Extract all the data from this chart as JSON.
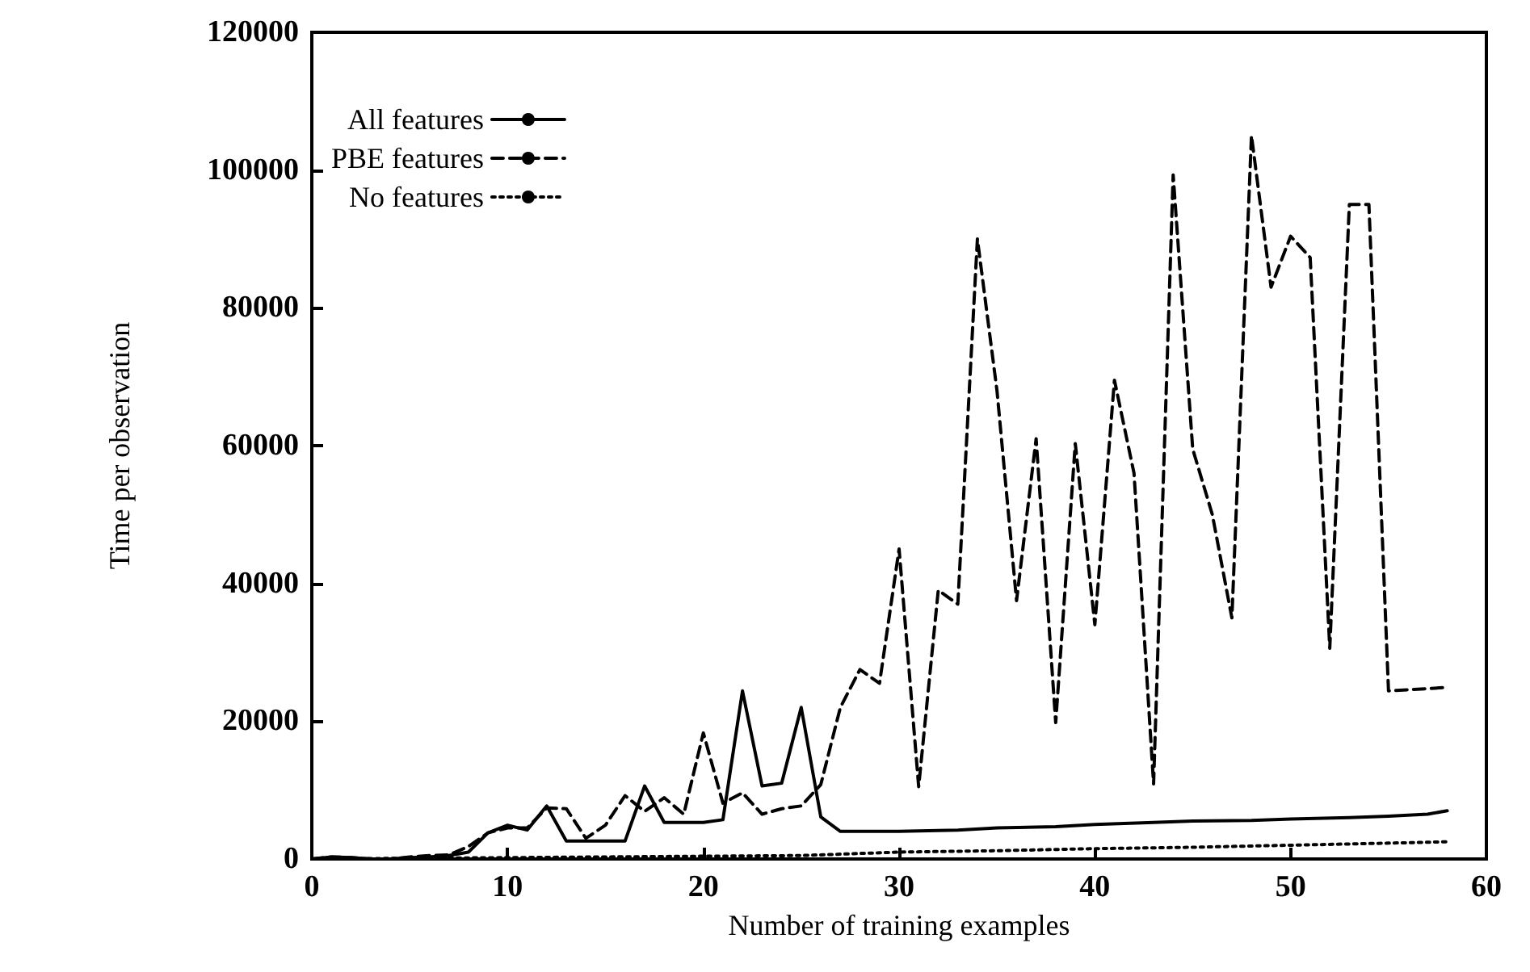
{
  "chart_data": {
    "type": "line",
    "xlabel": "Number of training examples",
    "ylabel": "Time per observation",
    "xlim": [
      0,
      60
    ],
    "xticks": [
      0,
      10,
      20,
      30,
      40,
      50,
      60
    ],
    "ylim": [
      0,
      120000
    ],
    "yticks": [
      0,
      20000,
      40000,
      60000,
      80000,
      100000,
      120000
    ],
    "grid": false,
    "legend": "top left",
    "marker": "none",
    "series": [
      {
        "name": "All features",
        "color": "#000000",
        "line_style": "solid",
        "x": [
          0,
          1,
          2,
          3,
          4,
          5,
          6,
          7,
          8,
          9,
          10,
          11,
          12,
          13,
          14,
          15,
          16,
          17,
          18,
          19,
          20,
          21,
          22,
          23,
          24,
          25,
          26,
          27,
          28,
          30,
          33,
          35,
          38,
          40,
          43,
          45,
          48,
          50,
          53,
          55,
          57,
          58
        ],
        "values": [
          0,
          300,
          200,
          0,
          0,
          200,
          300,
          500,
          1000,
          3800,
          4900,
          4200,
          7700,
          2600,
          2600,
          2600,
          2600,
          10600,
          5300,
          5300,
          5300,
          5700,
          24400,
          10600,
          11000,
          22000,
          6100,
          4000,
          4000,
          4000,
          4200,
          4500,
          4700,
          5000,
          5300,
          5500,
          5600,
          5800,
          6000,
          6200,
          6500,
          7000
        ]
      },
      {
        "name": "PBE features",
        "color": "#000000",
        "line_style": "dashed",
        "x": [
          0,
          1,
          2,
          3,
          4,
          5,
          6,
          7,
          8,
          9,
          10,
          11,
          12,
          13,
          14,
          15,
          16,
          17,
          18,
          19,
          20,
          21,
          22,
          23,
          24,
          25,
          26,
          27,
          28,
          29,
          30,
          31,
          32,
          33,
          34,
          35,
          36,
          37,
          38,
          39,
          40,
          41,
          42,
          43,
          44,
          45,
          46,
          47,
          48,
          49,
          50,
          51,
          52,
          53,
          54,
          55,
          58
        ],
        "values": [
          0,
          300,
          200,
          0,
          0,
          300,
          500,
          600,
          1800,
          3800,
          4500,
          4500,
          7400,
          7300,
          3000,
          4900,
          9200,
          6900,
          8900,
          6500,
          18300,
          8100,
          9600,
          6500,
          7300,
          7700,
          10800,
          22000,
          27500,
          25500,
          45000,
          10500,
          39000,
          37000,
          90000,
          68000,
          37500,
          61000,
          19800,
          60300,
          34000,
          69500,
          56000,
          10900,
          99300,
          59500,
          50000,
          35000,
          105000,
          83000,
          90400,
          87300,
          30600,
          95000,
          95000,
          24400,
          24900
        ]
      },
      {
        "name": "No features",
        "color": "#000000",
        "line_style": "dotted",
        "x": [
          0,
          5,
          10,
          15,
          20,
          25,
          30,
          35,
          40,
          45,
          50,
          55,
          58
        ],
        "values": [
          0,
          100,
          200,
          300,
          400,
          500,
          1000,
          1200,
          1500,
          1700,
          2000,
          2300,
          2500
        ]
      }
    ]
  }
}
